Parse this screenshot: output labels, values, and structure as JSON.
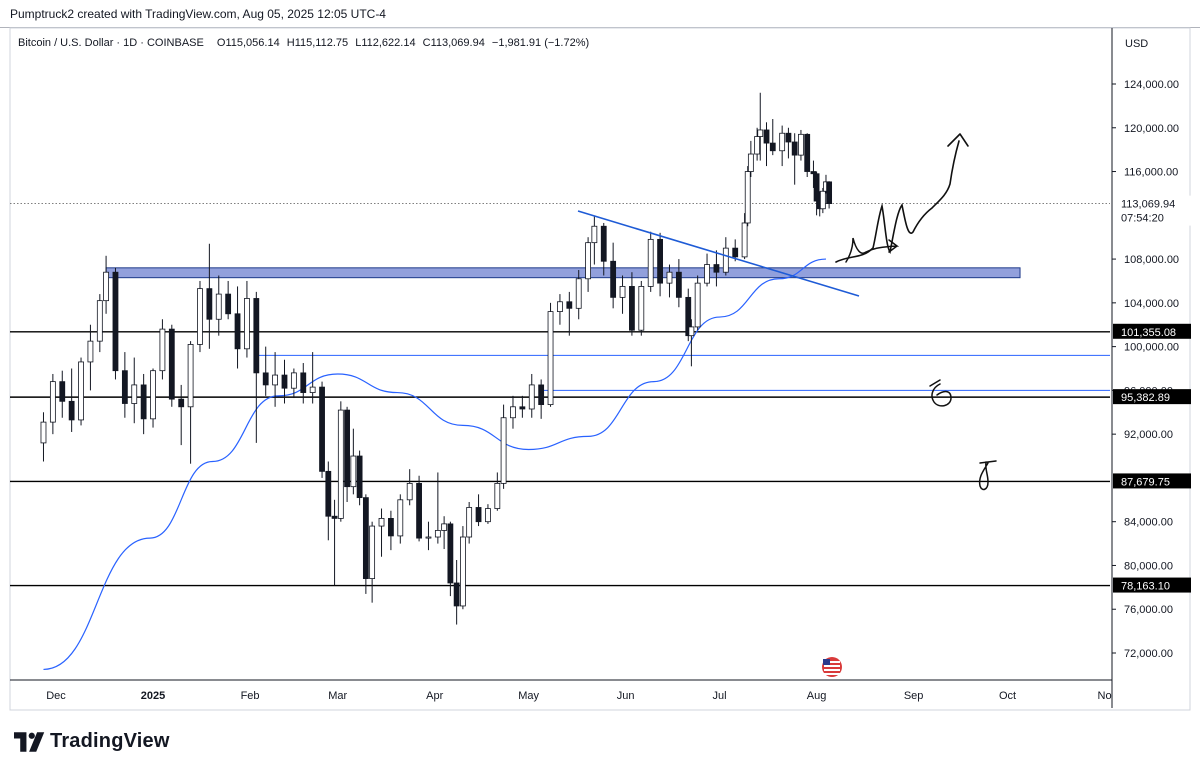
{
  "header": {
    "caption": "Pumptruck2 created with TradingView.com, Aug 05, 2025 12:05 UTC-4"
  },
  "legend": {
    "symbol": "Bitcoin / U.S. Dollar · 1D · COINBASE",
    "open_label": "O",
    "open": "115,056.14",
    "high_label": "H",
    "high": "115,112.75",
    "low_label": "L",
    "low": "112,622.14",
    "close_label": "C",
    "close": "113,069.94",
    "change": "−1,981.91 (−1.72%)"
  },
  "price_axis": {
    "currency": "USD",
    "ticks": [
      "124,000.00",
      "120,000.00",
      "116,000.00",
      "108,000.00",
      "104,000.00",
      "100,000.00",
      "96,000.00",
      "92,000.00",
      "84,000.00",
      "80,000.00",
      "76,000.00",
      "72,000.00"
    ]
  },
  "time_axis": {
    "labels": [
      "Dec",
      "2025",
      "Feb",
      "Mar",
      "Apr",
      "May",
      "Jun",
      "Jul",
      "Aug",
      "Sep",
      "Oct",
      "No"
    ]
  },
  "price_tags": {
    "last": "113,069.94",
    "countdown": "07:54:20",
    "level_1": "101,355.08",
    "level_2": "95,382.89",
    "level_3": "87,679.75",
    "level_4": "78,163.10"
  },
  "colors": {
    "candle": "#131722",
    "ma_line": "#2962ff",
    "support_line": "#000000",
    "zone_fill": "#7f8fd6",
    "zone_border": "#1e3a8a",
    "trendline": "#1e5bd6",
    "hline_blue": "#2962ff"
  },
  "icons": {
    "brand": "tradingview-logo-icon",
    "event": "us-flag-event-icon"
  },
  "footer": {
    "brand_name": "TradingView"
  },
  "chart_data": {
    "type": "candlestick",
    "title": "Bitcoin / U.S. Dollar · 1D · COINBASE",
    "ylim": [
      70000,
      126500
    ],
    "y_scale": "linear",
    "grid": false,
    "last_price": 113069.94,
    "horizontal_levels": [
      101355.08,
      95382.89,
      87679.75,
      78163.1
    ],
    "extra_levels": [
      99200,
      96000
    ],
    "resistance_zone": [
      106300,
      107200
    ],
    "ma_series": {
      "dates": [
        "2024-11-27",
        "2024-12-31",
        "2025-01-20",
        "2025-02-10",
        "2025-03-01",
        "2025-03-20",
        "2025-04-10",
        "2025-05-01",
        "2025-05-20",
        "2025-06-10",
        "2025-07-01",
        "2025-07-20",
        "2025-08-04"
      ],
      "values": [
        70500,
        82500,
        89500,
        95500,
        97500,
        95800,
        92800,
        90600,
        91800,
        96800,
        102700,
        106200,
        108000
      ]
    },
    "candles": [
      {
        "d": "2024-11-27",
        "o": 91200,
        "h": 94000,
        "l": 89500,
        "c": 93100
      },
      {
        "d": "2024-11-30",
        "o": 93100,
        "h": 97500,
        "l": 92000,
        "c": 96800
      },
      {
        "d": "2024-12-03",
        "o": 96800,
        "h": 97800,
        "l": 93500,
        "c": 95000
      },
      {
        "d": "2024-12-06",
        "o": 95000,
        "h": 98000,
        "l": 92200,
        "c": 93300
      },
      {
        "d": "2024-12-09",
        "o": 93300,
        "h": 99000,
        "l": 92800,
        "c": 98600
      },
      {
        "d": "2024-12-12",
        "o": 98600,
        "h": 102000,
        "l": 96000,
        "c": 100500
      },
      {
        "d": "2024-12-15",
        "o": 100500,
        "h": 104800,
        "l": 99500,
        "c": 104200
      },
      {
        "d": "2024-12-17",
        "o": 104200,
        "h": 108300,
        "l": 103000,
        "c": 106800
      },
      {
        "d": "2024-12-20",
        "o": 106800,
        "h": 107200,
        "l": 97000,
        "c": 97800
      },
      {
        "d": "2024-12-23",
        "o": 97800,
        "h": 99500,
        "l": 93500,
        "c": 94800
      },
      {
        "d": "2024-12-26",
        "o": 94800,
        "h": 99000,
        "l": 93000,
        "c": 96500
      },
      {
        "d": "2024-12-29",
        "o": 96500,
        "h": 97500,
        "l": 92000,
        "c": 93400
      },
      {
        "d": "2025-01-01",
        "o": 93400,
        "h": 98000,
        "l": 92600,
        "c": 97800
      },
      {
        "d": "2025-01-04",
        "o": 97800,
        "h": 102500,
        "l": 97000,
        "c": 101600
      },
      {
        "d": "2025-01-07",
        "o": 101600,
        "h": 102000,
        "l": 94500,
        "c": 95200
      },
      {
        "d": "2025-01-10",
        "o": 95200,
        "h": 96500,
        "l": 91000,
        "c": 94500
      },
      {
        "d": "2025-01-13",
        "o": 94500,
        "h": 100500,
        "l": 89300,
        "c": 100200
      },
      {
        "d": "2025-01-16",
        "o": 100200,
        "h": 106000,
        "l": 99500,
        "c": 105300
      },
      {
        "d": "2025-01-19",
        "o": 105300,
        "h": 109400,
        "l": 99800,
        "c": 102500
      },
      {
        "d": "2025-01-22",
        "o": 102500,
        "h": 106500,
        "l": 101000,
        "c": 104800
      },
      {
        "d": "2025-01-25",
        "o": 104800,
        "h": 106000,
        "l": 102500,
        "c": 103000
      },
      {
        "d": "2025-01-28",
        "o": 103000,
        "h": 105500,
        "l": 98000,
        "c": 99800
      },
      {
        "d": "2025-01-31",
        "o": 99800,
        "h": 106000,
        "l": 99000,
        "c": 104400
      },
      {
        "d": "2025-02-03",
        "o": 104400,
        "h": 105000,
        "l": 91200,
        "c": 97600
      },
      {
        "d": "2025-02-06",
        "o": 97600,
        "h": 100000,
        "l": 95500,
        "c": 96500
      },
      {
        "d": "2025-02-09",
        "o": 96500,
        "h": 99500,
        "l": 94500,
        "c": 97400
      },
      {
        "d": "2025-02-12",
        "o": 97400,
        "h": 98800,
        "l": 94800,
        "c": 96200
      },
      {
        "d": "2025-02-15",
        "o": 96200,
        "h": 98000,
        "l": 95300,
        "c": 97600
      },
      {
        "d": "2025-02-18",
        "o": 97600,
        "h": 98500,
        "l": 94800,
        "c": 95800
      },
      {
        "d": "2025-02-21",
        "o": 95800,
        "h": 99500,
        "l": 94800,
        "c": 96300
      },
      {
        "d": "2025-02-24",
        "o": 96300,
        "h": 96800,
        "l": 88000,
        "c": 88600
      },
      {
        "d": "2025-02-26",
        "o": 88600,
        "h": 89500,
        "l": 82300,
        "c": 84500
      },
      {
        "d": "2025-02-28",
        "o": 84500,
        "h": 86000,
        "l": 78200,
        "c": 84300
      },
      {
        "d": "2025-03-02",
        "o": 84300,
        "h": 95000,
        "l": 84000,
        "c": 94200
      },
      {
        "d": "2025-03-04",
        "o": 94200,
        "h": 94500,
        "l": 85800,
        "c": 87200
      },
      {
        "d": "2025-03-06",
        "o": 87200,
        "h": 92500,
        "l": 86500,
        "c": 90000
      },
      {
        "d": "2025-03-08",
        "o": 90000,
        "h": 90500,
        "l": 85500,
        "c": 86200
      },
      {
        "d": "2025-03-10",
        "o": 86200,
        "h": 86500,
        "l": 77400,
        "c": 78800
      },
      {
        "d": "2025-03-12",
        "o": 78800,
        "h": 84000,
        "l": 76600,
        "c": 83600
      },
      {
        "d": "2025-03-15",
        "o": 83600,
        "h": 85200,
        "l": 80800,
        "c": 84300
      },
      {
        "d": "2025-03-18",
        "o": 84300,
        "h": 85000,
        "l": 81400,
        "c": 82700
      },
      {
        "d": "2025-03-21",
        "o": 82700,
        "h": 86500,
        "l": 82000,
        "c": 86000
      },
      {
        "d": "2025-03-24",
        "o": 86000,
        "h": 88800,
        "l": 85500,
        "c": 87500
      },
      {
        "d": "2025-03-27",
        "o": 87500,
        "h": 88200,
        "l": 82200,
        "c": 82500
      },
      {
        "d": "2025-03-30",
        "o": 82500,
        "h": 84000,
        "l": 81400,
        "c": 82600
      },
      {
        "d": "2025-04-02",
        "o": 82600,
        "h": 88500,
        "l": 82000,
        "c": 83200
      },
      {
        "d": "2025-04-04",
        "o": 83200,
        "h": 84500,
        "l": 81500,
        "c": 83800
      },
      {
        "d": "2025-04-06",
        "o": 83800,
        "h": 84000,
        "l": 77200,
        "c": 78400
      },
      {
        "d": "2025-04-08",
        "o": 78400,
        "h": 80500,
        "l": 74600,
        "c": 76300
      },
      {
        "d": "2025-04-10",
        "o": 76300,
        "h": 83600,
        "l": 76000,
        "c": 82600
      },
      {
        "d": "2025-04-12",
        "o": 82600,
        "h": 85800,
        "l": 82000,
        "c": 85300
      },
      {
        "d": "2025-04-15",
        "o": 85300,
        "h": 86500,
        "l": 83600,
        "c": 84000
      },
      {
        "d": "2025-04-18",
        "o": 84000,
        "h": 85600,
        "l": 83800,
        "c": 85200
      },
      {
        "d": "2025-04-21",
        "o": 85200,
        "h": 88500,
        "l": 85000,
        "c": 87500
      },
      {
        "d": "2025-04-23",
        "o": 87500,
        "h": 94700,
        "l": 87000,
        "c": 93500
      },
      {
        "d": "2025-04-26",
        "o": 93500,
        "h": 95500,
        "l": 92500,
        "c": 94500
      },
      {
        "d": "2025-04-29",
        "o": 94500,
        "h": 95500,
        "l": 93500,
        "c": 94300
      },
      {
        "d": "2025-05-02",
        "o": 94300,
        "h": 97500,
        "l": 93500,
        "c": 96500
      },
      {
        "d": "2025-05-05",
        "o": 96500,
        "h": 97000,
        "l": 93400,
        "c": 94700
      },
      {
        "d": "2025-05-08",
        "o": 94700,
        "h": 104000,
        "l": 94500,
        "c": 103200
      },
      {
        "d": "2025-05-11",
        "o": 103200,
        "h": 104800,
        "l": 102000,
        "c": 104100
      },
      {
        "d": "2025-05-14",
        "o": 104100,
        "h": 105000,
        "l": 101000,
        "c": 103500
      },
      {
        "d": "2025-05-17",
        "o": 103500,
        "h": 107000,
        "l": 102500,
        "c": 106200
      },
      {
        "d": "2025-05-20",
        "o": 106200,
        "h": 110000,
        "l": 105000,
        "c": 109500
      },
      {
        "d": "2025-05-22",
        "o": 109500,
        "h": 111900,
        "l": 107500,
        "c": 111000
      },
      {
        "d": "2025-05-25",
        "o": 111000,
        "h": 111300,
        "l": 106500,
        "c": 107800
      },
      {
        "d": "2025-05-28",
        "o": 107800,
        "h": 109500,
        "l": 103500,
        "c": 104500
      },
      {
        "d": "2025-05-31",
        "o": 104500,
        "h": 106500,
        "l": 103000,
        "c": 105500
      },
      {
        "d": "2025-06-03",
        "o": 105500,
        "h": 106800,
        "l": 101000,
        "c": 101500
      },
      {
        "d": "2025-06-06",
        "o": 101500,
        "h": 106000,
        "l": 101000,
        "c": 105500
      },
      {
        "d": "2025-06-09",
        "o": 105500,
        "h": 110500,
        "l": 105000,
        "c": 109800
      },
      {
        "d": "2025-06-12",
        "o": 109800,
        "h": 110400,
        "l": 104600,
        "c": 105800
      },
      {
        "d": "2025-06-15",
        "o": 105800,
        "h": 107500,
        "l": 104500,
        "c": 106800
      },
      {
        "d": "2025-06-18",
        "o": 106800,
        "h": 108000,
        "l": 103600,
        "c": 104500
      },
      {
        "d": "2025-06-21",
        "o": 104500,
        "h": 105300,
        "l": 100500,
        "c": 101000
      },
      {
        "d": "2025-06-22",
        "o": 101000,
        "h": 102500,
        "l": 98200,
        "c": 101800
      },
      {
        "d": "2025-06-24",
        "o": 101800,
        "h": 106500,
        "l": 101500,
        "c": 105800
      },
      {
        "d": "2025-06-27",
        "o": 105800,
        "h": 108500,
        "l": 105500,
        "c": 107500
      },
      {
        "d": "2025-06-30",
        "o": 107500,
        "h": 108800,
        "l": 105500,
        "c": 106800
      },
      {
        "d": "2025-07-03",
        "o": 106800,
        "h": 110000,
        "l": 106500,
        "c": 109000
      },
      {
        "d": "2025-07-06",
        "o": 109000,
        "h": 109800,
        "l": 107800,
        "c": 108200
      },
      {
        "d": "2025-07-09",
        "o": 108200,
        "h": 112200,
        "l": 108000,
        "c": 111300
      },
      {
        "d": "2025-07-10",
        "o": 111300,
        "h": 116500,
        "l": 111000,
        "c": 116000
      },
      {
        "d": "2025-07-11",
        "o": 116000,
        "h": 118800,
        "l": 115500,
        "c": 117600
      },
      {
        "d": "2025-07-13",
        "o": 117600,
        "h": 120000,
        "l": 117000,
        "c": 119200
      },
      {
        "d": "2025-07-14",
        "o": 119200,
        "h": 123200,
        "l": 117000,
        "c": 119800
      },
      {
        "d": "2025-07-16",
        "o": 119800,
        "h": 120500,
        "l": 116500,
        "c": 118600
      },
      {
        "d": "2025-07-18",
        "o": 118600,
        "h": 120800,
        "l": 117500,
        "c": 117900
      },
      {
        "d": "2025-07-21",
        "o": 117900,
        "h": 120200,
        "l": 116500,
        "c": 119500
      },
      {
        "d": "2025-07-23",
        "o": 119500,
        "h": 120000,
        "l": 117200,
        "c": 118700
      },
      {
        "d": "2025-07-25",
        "o": 118700,
        "h": 119500,
        "l": 114800,
        "c": 117500
      },
      {
        "d": "2025-07-27",
        "o": 117500,
        "h": 119800,
        "l": 117000,
        "c": 119400
      },
      {
        "d": "2025-07-29",
        "o": 119400,
        "h": 119500,
        "l": 115500,
        "c": 116000
      },
      {
        "d": "2025-07-31",
        "o": 116000,
        "h": 117000,
        "l": 114500,
        "c": 115800
      },
      {
        "d": "2025-08-01",
        "o": 115800,
        "h": 116000,
        "l": 112000,
        "c": 113300
      },
      {
        "d": "2025-08-02",
        "o": 113300,
        "h": 114200,
        "l": 111900,
        "c": 112600
      },
      {
        "d": "2025-08-03",
        "o": 112600,
        "h": 114500,
        "l": 112200,
        "c": 114200
      },
      {
        "d": "2025-08-04",
        "o": 114200,
        "h": 115700,
        "l": 114000,
        "c": 115056.14
      },
      {
        "d": "2025-08-05",
        "o": 115056.14,
        "h": 115112.75,
        "l": 112622.14,
        "c": 113069.94
      }
    ]
  }
}
